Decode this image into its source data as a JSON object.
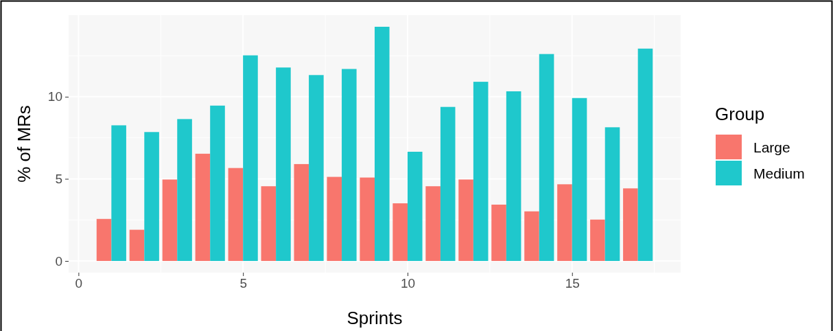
{
  "chart_data": {
    "type": "bar",
    "xlabel": "Sprints",
    "ylabel": "% of MRs",
    "legend_title": "Group",
    "legend": "right",
    "grid": true,
    "x": [
      1,
      2,
      3,
      4,
      5,
      6,
      7,
      8,
      9,
      10,
      11,
      12,
      13,
      14,
      15,
      16,
      17
    ],
    "xlim": [
      -0.3,
      18.3
    ],
    "xticks": [
      0,
      5,
      10,
      15
    ],
    "ylim": [
      -0.71,
      14.97
    ],
    "yticks": [
      0,
      5,
      10
    ],
    "series": [
      {
        "name": "Large",
        "color": "#f8766d",
        "values": [
          2.56,
          1.9,
          4.96,
          6.53,
          5.66,
          4.55,
          5.9,
          5.12,
          5.08,
          3.51,
          4.55,
          4.96,
          3.43,
          3.02,
          4.67,
          2.52,
          4.42
        ]
      },
      {
        "name": "Medium",
        "color": "#1fc8cc",
        "values": [
          8.26,
          7.85,
          8.64,
          9.46,
          12.52,
          11.78,
          11.32,
          11.69,
          14.26,
          6.65,
          9.38,
          10.91,
          10.33,
          12.6,
          9.92,
          8.14,
          12.93
        ]
      }
    ]
  }
}
